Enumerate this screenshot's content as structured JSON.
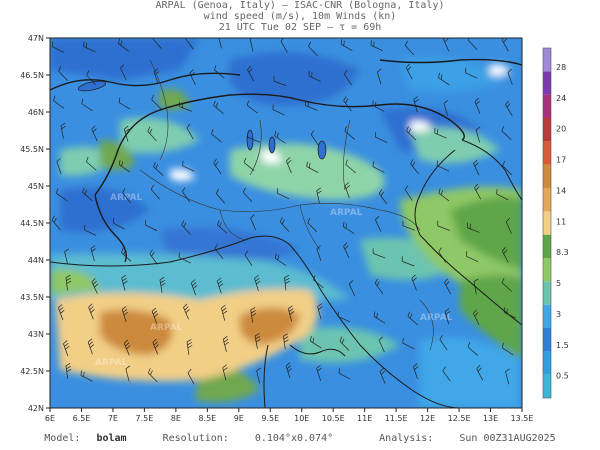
{
  "header": {
    "line1": "ARPAL (Genoa, Italy)  —  ISAC-CNR (Bologna, Italy)",
    "line2": "wind speed (m/s), 10m Winds (kn)",
    "line3": "21 UTC Tue 02 SEP  —  τ = 69h"
  },
  "map": {
    "lon_range": [
      6,
      13.5
    ],
    "lat_range": [
      42,
      47
    ],
    "lon_ticks": [
      "6E",
      "6.5E",
      "7E",
      "7.5E",
      "8E",
      "8.5E",
      "9E",
      "9.5E",
      "10E",
      "10.5E",
      "11E",
      "11.5E",
      "12E",
      "12.5E",
      "13E",
      "13.5E"
    ],
    "lat_ticks": [
      "42N",
      "42.5N",
      "43N",
      "43.5N",
      "44N",
      "44.5N",
      "45N",
      "45.5N",
      "46N",
      "46.5N",
      "47N"
    ],
    "watermark": "ARPAL"
  },
  "colorbar": {
    "labels": [
      "0.5",
      "1.5",
      "3",
      "5",
      "8.3",
      "11",
      "14",
      "17",
      "20",
      "24",
      "28"
    ],
    "colors": [
      "#3ab7d6",
      "#2f9fe0",
      "#2f7fd8",
      "#3fa7e8",
      "#6cc4b0",
      "#8fc866",
      "#5fa64a",
      "#f2cf86",
      "#e3a85a",
      "#cc8a3e",
      "#d85a3a",
      "#b73b3b",
      "#a8327a",
      "#7b3ab0",
      "#a08ad8"
    ]
  },
  "footer": {
    "model_label": "Model:",
    "model_value": "bolam",
    "resolution_label": "Resolution:",
    "resolution_value": "0.104°x0.074°",
    "analysis_label": "Analysis:",
    "analysis_value": "Sun 00Z31AUG2025"
  }
}
